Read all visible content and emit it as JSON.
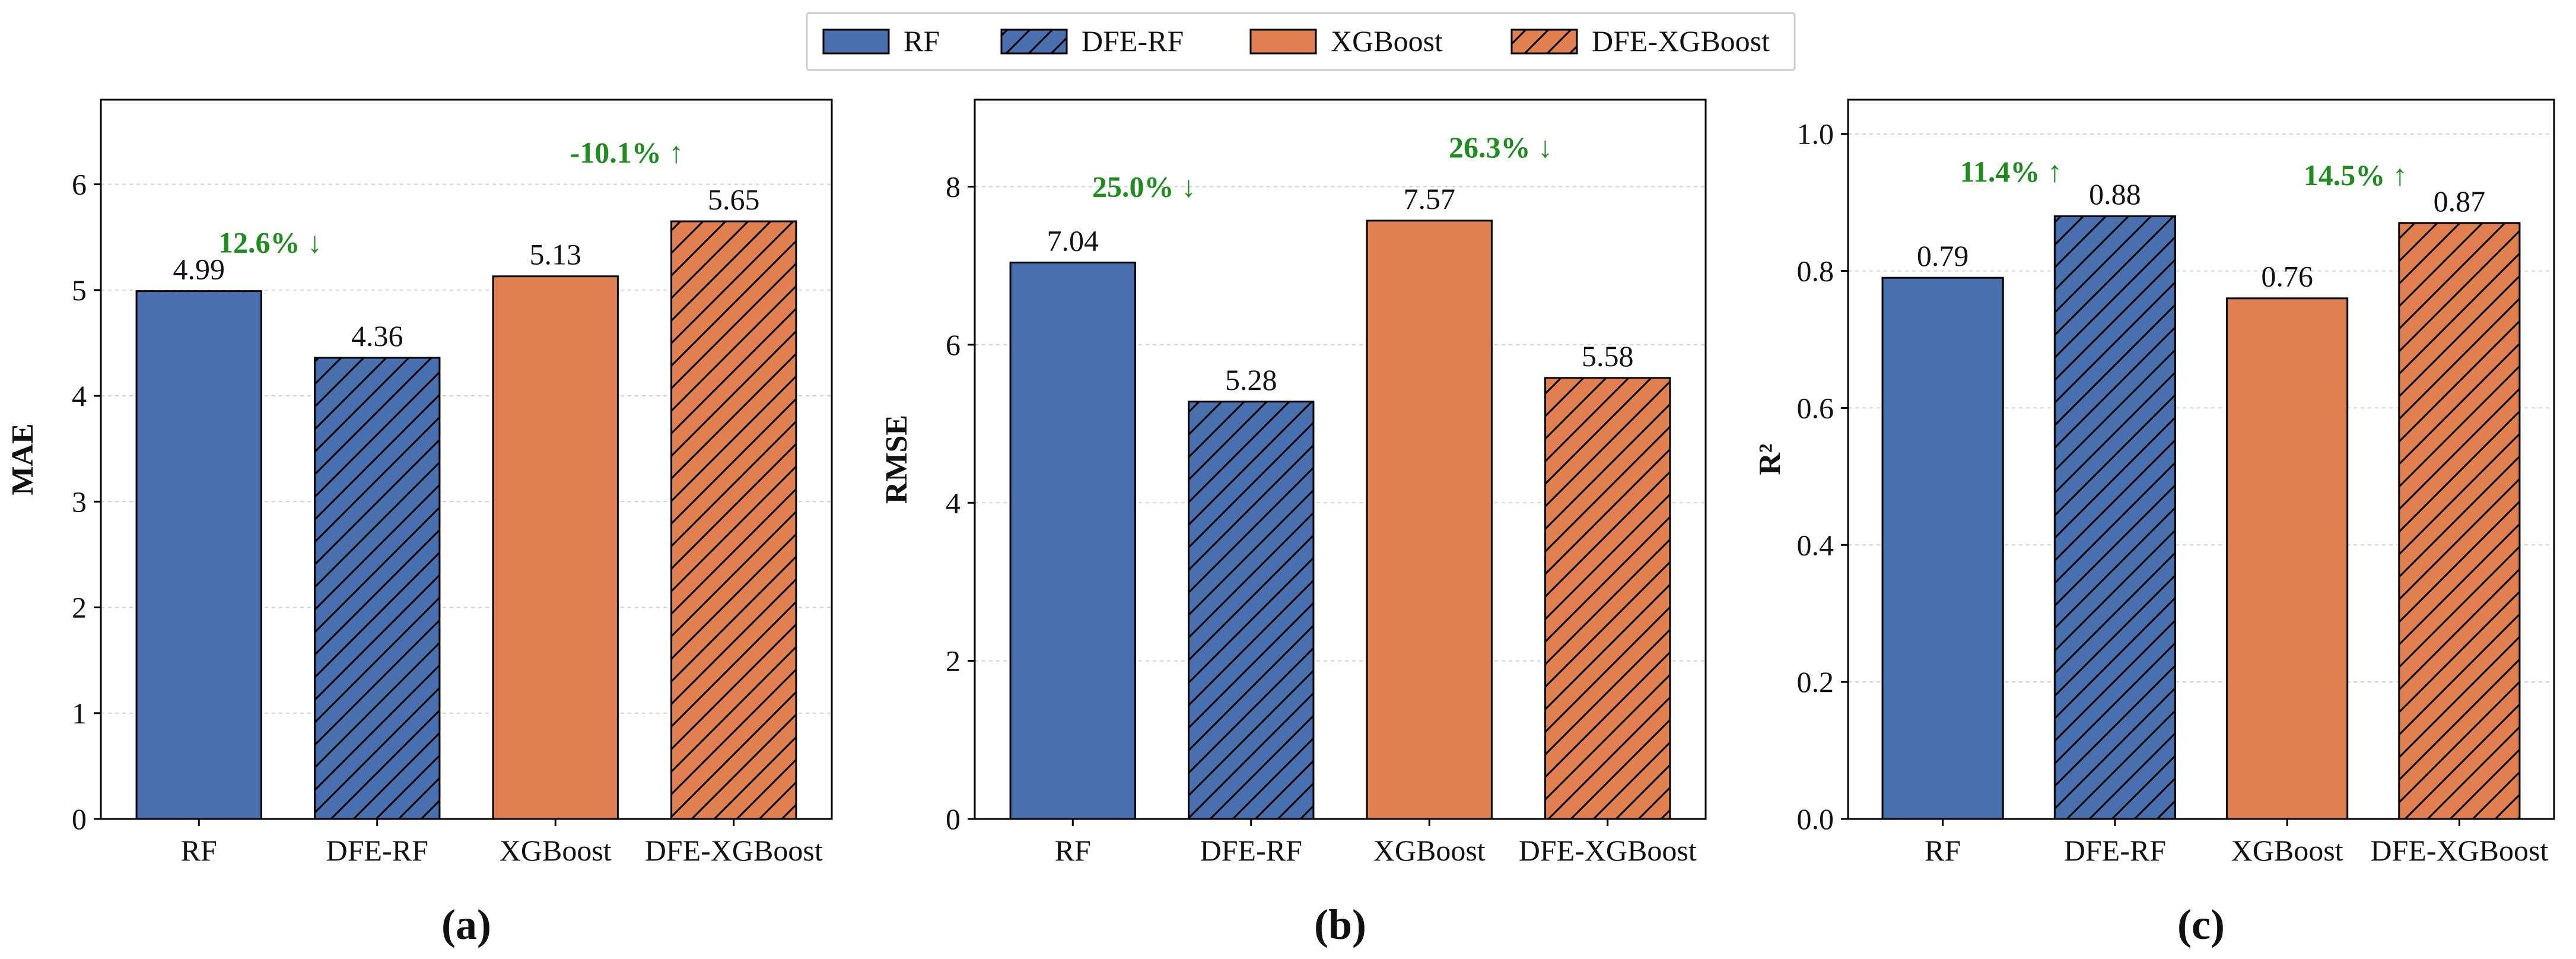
{
  "colors": {
    "rf": "#4a6faf",
    "xgboost": "#e07f4f",
    "improvement": "#1e8c1e",
    "grid": "#d0d0d0"
  },
  "legend": {
    "entries": [
      {
        "label": "RF",
        "color": "#4a6faf",
        "hatched": false
      },
      {
        "label": "DFE-RF",
        "color": "#4a6faf",
        "hatched": true
      },
      {
        "label": "XGBoost",
        "color": "#e07f4f",
        "hatched": false
      },
      {
        "label": "DFE-XGBoost",
        "color": "#e07f4f",
        "hatched": true
      }
    ],
    "placement": "top-center"
  },
  "chart_data": [
    {
      "type": "bar",
      "panel_label": "(a)",
      "ylabel": "MAE",
      "xlabel": "",
      "categories": [
        "RF",
        "DFE-RF",
        "XGBoost",
        "DFE-XGBoost"
      ],
      "values": [
        4.99,
        4.36,
        5.13,
        5.65
      ],
      "value_labels": [
        "4.99",
        "4.36",
        "5.13",
        "5.65"
      ],
      "ylim": [
        0,
        6.8
      ],
      "yticks": [
        0,
        1,
        2,
        3,
        4,
        5,
        6
      ],
      "ytick_labels": [
        "0",
        "1",
        "2",
        "3",
        "4",
        "5",
        "6"
      ],
      "grid": true,
      "annotations": [
        {
          "text": "12.6% ↓",
          "x_between": [
            0,
            1
          ],
          "y": 5.45
        },
        {
          "text": "-10.1% ↑",
          "x_between": [
            2,
            3
          ],
          "y": 6.3
        }
      ]
    },
    {
      "type": "bar",
      "panel_label": "(b)",
      "ylabel": "RMSE",
      "xlabel": "",
      "categories": [
        "RF",
        "DFE-RF",
        "XGBoost",
        "DFE-XGBoost"
      ],
      "values": [
        7.04,
        5.28,
        7.57,
        5.58
      ],
      "value_labels": [
        "7.04",
        "5.28",
        "7.57",
        "5.58"
      ],
      "ylim": [
        0,
        9.1
      ],
      "yticks": [
        0,
        2,
        4,
        6,
        8
      ],
      "ytick_labels": [
        "0",
        "2",
        "4",
        "6",
        "8"
      ],
      "grid": true,
      "annotations": [
        {
          "text": "25.0% ↓",
          "x_between": [
            0,
            1
          ],
          "y": 8.0
        },
        {
          "text": "26.3% ↓",
          "x_between": [
            2,
            3
          ],
          "y": 8.5
        }
      ]
    },
    {
      "type": "bar",
      "panel_label": "(c)",
      "ylabel": "R²",
      "xlabel": "",
      "categories": [
        "RF",
        "DFE-RF",
        "XGBoost",
        "DFE-XGBoost"
      ],
      "values": [
        0.79,
        0.88,
        0.76,
        0.87
      ],
      "value_labels": [
        "0.79",
        "0.88",
        "0.76",
        "0.87"
      ],
      "ylim": [
        0,
        1.05
      ],
      "yticks": [
        0,
        0.2,
        0.4,
        0.6,
        0.8,
        1.0
      ],
      "ytick_labels": [
        "0.0",
        "0.2",
        "0.4",
        "0.6",
        "0.8",
        "1.0"
      ],
      "grid": true,
      "annotations": [
        {
          "text": "11.4% ↑",
          "x_between": [
            0,
            1
          ],
          "y": 0.945
        },
        {
          "text": "14.5% ↑",
          "x_between": [
            2,
            3
          ],
          "y": 0.94
        }
      ]
    }
  ]
}
